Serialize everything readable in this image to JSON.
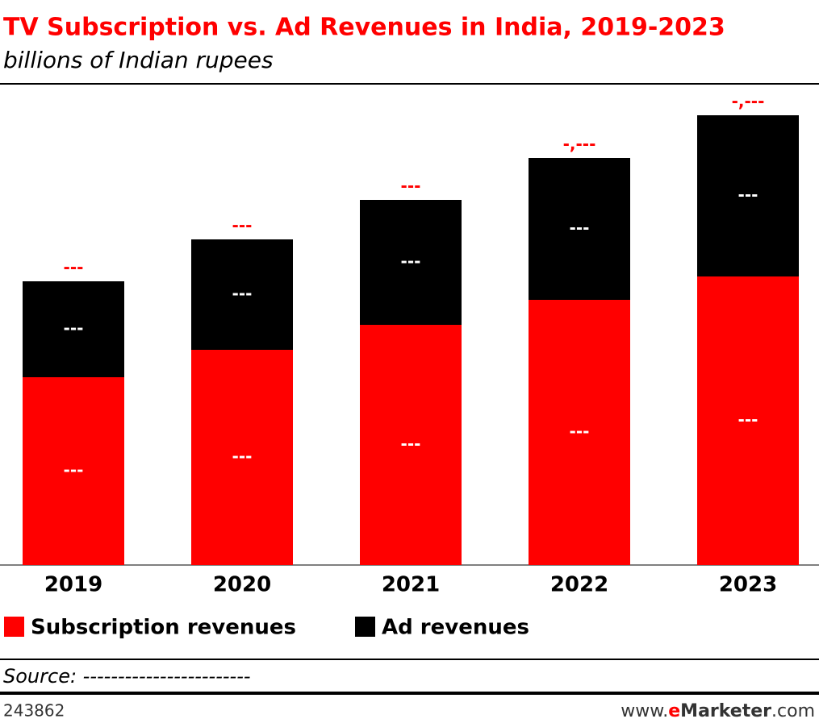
{
  "chart_data": {
    "type": "stacked_bar",
    "title": "TV Subscription vs. Ad Revenues in India, 2019-2023",
    "subtitle": "billions of Indian rupees",
    "categories": [
      "2019",
      "2020",
      "2021",
      "2022",
      "2023"
    ],
    "series": [
      {
        "name": "Subscription revenues",
        "color": "#ff0000",
        "values": [
          466,
          534,
          596,
          658,
          716
        ],
        "value_labels": [
          "---",
          "---",
          "---",
          "---",
          "---"
        ]
      },
      {
        "name": "Ad revenues",
        "color": "#000000",
        "values": [
          238,
          274,
          310,
          352,
          400
        ],
        "value_labels": [
          "---",
          "---",
          "---",
          "---",
          "---"
        ]
      }
    ],
    "total_labels": [
      "---",
      "---",
      "---",
      "-,---",
      "-,---"
    ],
    "source": "Source: ------------------------",
    "chart_id": "243862",
    "brand": {
      "prefix": "www.",
      "e": "e",
      "name": "Marketer",
      "suffix": ".com"
    }
  }
}
